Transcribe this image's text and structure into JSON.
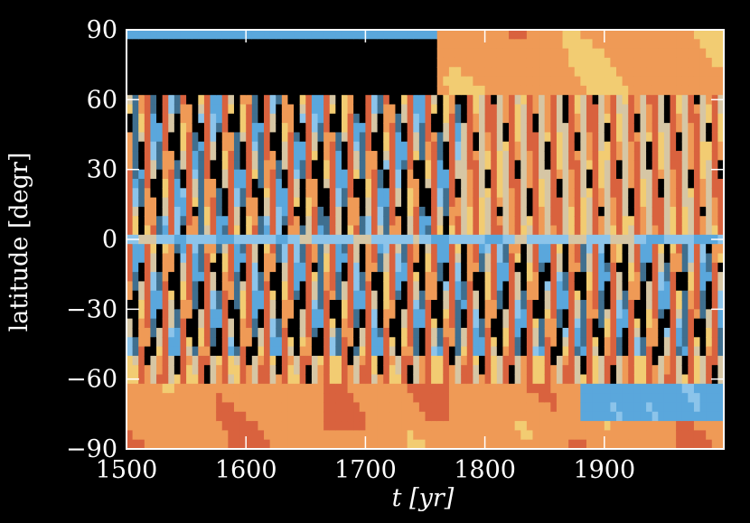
{
  "chart_data": {
    "type": "heatmap",
    "title": "",
    "xlabel": "t [yr]",
    "ylabel": "latitude [degr]",
    "xlim": [
      1500,
      2000
    ],
    "ylim": [
      -90,
      90
    ],
    "x_ticks": [
      "1500",
      "1600",
      "1700",
      "1800",
      "1900"
    ],
    "y_ticks": [
      "90",
      "60",
      "30",
      "0",
      "−30",
      "−60",
      "−90"
    ],
    "x_tick_values": [
      1500,
      1600,
      1700,
      1800,
      1900
    ],
    "y_tick_values": [
      90,
      60,
      30,
      0,
      -30,
      -60,
      -90
    ],
    "grid": false,
    "colors": {
      "background": "#000000",
      "blue_dark": "#3f6f8f",
      "blue": "#5aa7dc",
      "blue_light": "#8cc4ea",
      "neutral": "#d6c6a4",
      "yellow": "#f2cc72",
      "orange": "#ef9a56",
      "red": "#d9623e",
      "black_band": "#000000"
    },
    "features": {
      "north_cap_start": 1500,
      "north_cap_end": 1760,
      "cycle_period_yr": 17
    }
  }
}
